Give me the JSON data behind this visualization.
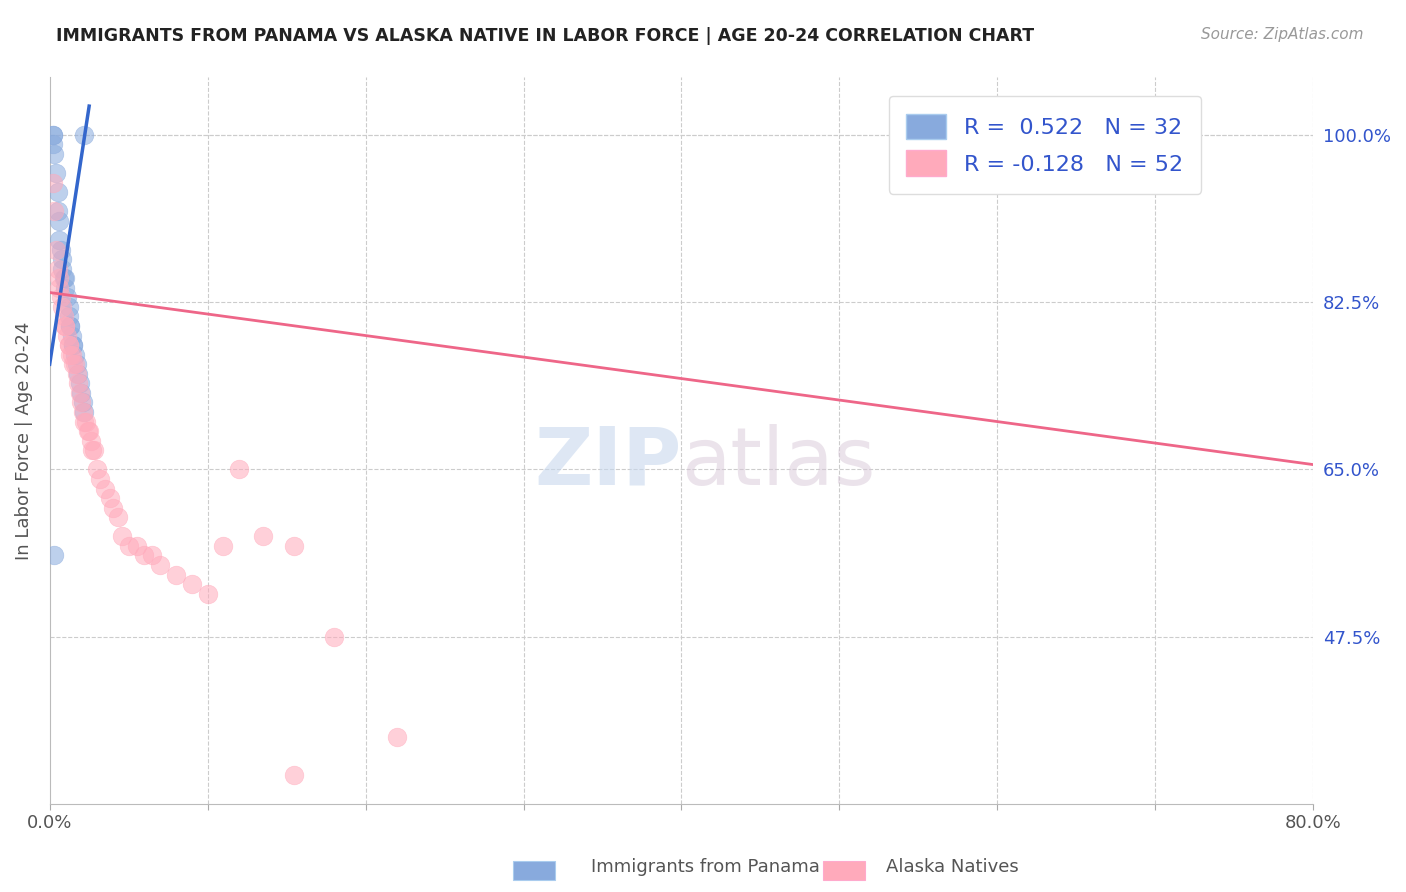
{
  "title": "IMMIGRANTS FROM PANAMA VS ALASKA NATIVE IN LABOR FORCE | AGE 20-24 CORRELATION CHART",
  "source": "Source: ZipAtlas.com",
  "ylabel": "In Labor Force | Age 20-24",
  "x_min": 0.0,
  "x_max": 0.8,
  "y_min": 0.3,
  "y_max": 1.06,
  "x_ticks": [
    0.0,
    0.1,
    0.2,
    0.3,
    0.4,
    0.5,
    0.6,
    0.7,
    0.8
  ],
  "x_tick_labels": [
    "0.0%",
    "",
    "",
    "",
    "",
    "",
    "",
    "",
    "80.0%"
  ],
  "y_tick_labels_right": [
    "100.0%",
    "82.5%",
    "65.0%",
    "47.5%"
  ],
  "y_ticks_right": [
    1.0,
    0.825,
    0.65,
    0.475
  ],
  "grid_color": "#cccccc",
  "background_color": "#ffffff",
  "legend_R1": "0.522",
  "legend_N1": "32",
  "legend_R2": "-0.128",
  "legend_N2": "52",
  "blue_color": "#88aadd",
  "pink_color": "#ffaabb",
  "blue_line_color": "#3366cc",
  "pink_line_color": "#ee6688",
  "watermark_zip": "ZIP",
  "watermark_atlas": "atlas",
  "legend_color": "#3355cc",
  "bottom_labels": [
    "Immigrants from Panama",
    "Alaska Natives"
  ],
  "blue_scatter_x": [
    0.002,
    0.002,
    0.002,
    0.003,
    0.004,
    0.005,
    0.005,
    0.006,
    0.006,
    0.007,
    0.008,
    0.008,
    0.009,
    0.01,
    0.01,
    0.011,
    0.012,
    0.012,
    0.013,
    0.013,
    0.014,
    0.015,
    0.015,
    0.016,
    0.017,
    0.018,
    0.019,
    0.02,
    0.021,
    0.022,
    0.003,
    0.022
  ],
  "blue_scatter_y": [
    1.0,
    1.0,
    0.99,
    0.98,
    0.96,
    0.94,
    0.92,
    0.91,
    0.89,
    0.88,
    0.87,
    0.86,
    0.85,
    0.85,
    0.84,
    0.83,
    0.82,
    0.81,
    0.8,
    0.8,
    0.79,
    0.78,
    0.78,
    0.77,
    0.76,
    0.75,
    0.74,
    0.73,
    0.72,
    0.71,
    0.56,
    1.0
  ],
  "pink_scatter_x": [
    0.002,
    0.003,
    0.004,
    0.005,
    0.006,
    0.006,
    0.007,
    0.008,
    0.009,
    0.01,
    0.01,
    0.011,
    0.012,
    0.012,
    0.013,
    0.014,
    0.015,
    0.016,
    0.017,
    0.018,
    0.019,
    0.02,
    0.021,
    0.022,
    0.023,
    0.024,
    0.025,
    0.026,
    0.027,
    0.028,
    0.03,
    0.032,
    0.035,
    0.038,
    0.04,
    0.043,
    0.046,
    0.05,
    0.055,
    0.06,
    0.065,
    0.07,
    0.08,
    0.09,
    0.1,
    0.11,
    0.12,
    0.135,
    0.155,
    0.18,
    0.22,
    0.155
  ],
  "pink_scatter_y": [
    0.95,
    0.92,
    0.88,
    0.86,
    0.85,
    0.84,
    0.83,
    0.82,
    0.81,
    0.8,
    0.8,
    0.79,
    0.78,
    0.78,
    0.77,
    0.77,
    0.76,
    0.76,
    0.75,
    0.74,
    0.73,
    0.72,
    0.71,
    0.7,
    0.7,
    0.69,
    0.69,
    0.68,
    0.67,
    0.67,
    0.65,
    0.64,
    0.63,
    0.62,
    0.61,
    0.6,
    0.58,
    0.57,
    0.57,
    0.56,
    0.56,
    0.55,
    0.54,
    0.53,
    0.52,
    0.57,
    0.65,
    0.58,
    0.57,
    0.475,
    0.37,
    0.33
  ],
  "blue_trendline_x": [
    0.0,
    0.025
  ],
  "blue_trendline_y": [
    0.76,
    1.03
  ],
  "pink_trendline_x": [
    0.0,
    0.8
  ],
  "pink_trendline_y": [
    0.835,
    0.655
  ]
}
